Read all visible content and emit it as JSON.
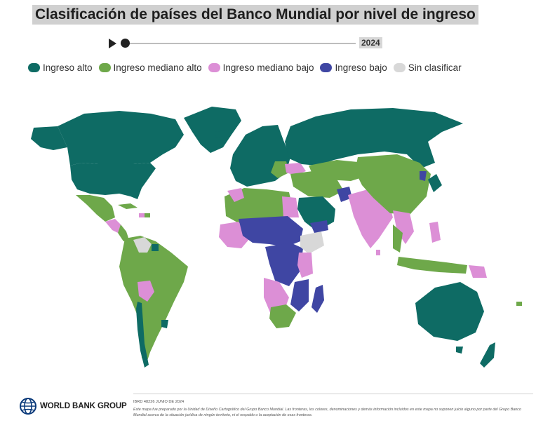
{
  "title": "Clasificación de países del Banco Mundial por nivel de ingreso",
  "timeline": {
    "year": "2024",
    "position": 0
  },
  "legend": [
    {
      "label": "Ingreso alto",
      "color": "#0e6b64"
    },
    {
      "label": "Ingreso mediano alto",
      "color": "#6ea84a"
    },
    {
      "label": "Ingreso mediano bajo",
      "color": "#dc8fd6"
    },
    {
      "label": "Ingreso bajo",
      "color": "#3f46a3"
    },
    {
      "label": "Sin clasificar",
      "color": "#d8d8d8"
    }
  ],
  "footer": {
    "logo_text": "WORLD BANK GROUP",
    "doc_id": "IBRD 48226 JUNIO DE 2024",
    "disclaimer": "Este mapa fue preparado por la Unidad de Diseño Cartográfico del Grupo Banco Mundial. Las fronteras, los colores, denominaciones y demás información incluidos en este mapa no suponen juicio alguno por parte del Grupo Banco Mundial acerca de la situación jurídica de ningún territorio, ni el respaldo o la aceptación de esas fronteras."
  }
}
